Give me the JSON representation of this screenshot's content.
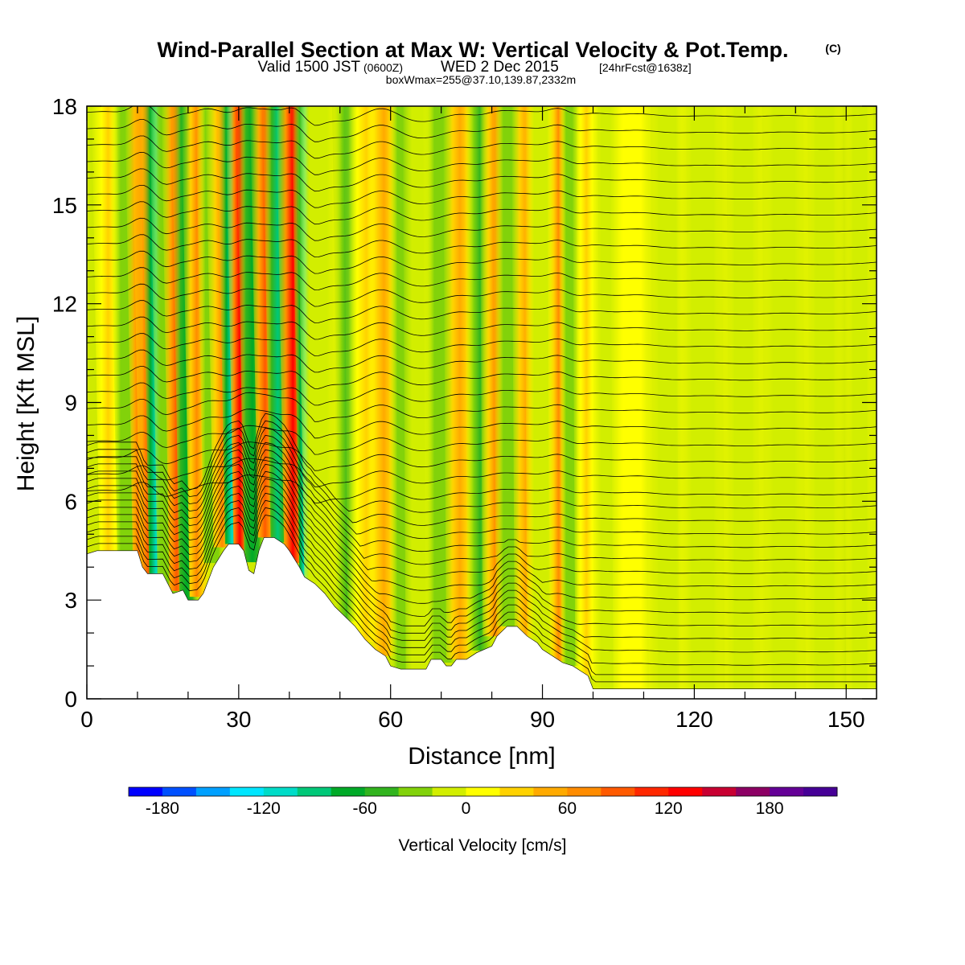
{
  "title": {
    "main": "Wind-Parallel Section at Max W: Vertical Velocity & Pot.Temp.",
    "copyright": "(C)",
    "valid_prefix": "Valid 1500 JST",
    "valid_utc": "(0600Z)",
    "valid_date": "WED 2 Dec 2015",
    "forecast": "[24hrFcst@1638z]",
    "boxwmax": "boxWmax=255@37.10,139.87,2332m"
  },
  "chart_data": {
    "type": "heatmap",
    "title": "Wind-Parallel Section at Max W: Vertical Velocity & Pot.Temp.",
    "xlabel": "Distance [nm]",
    "ylabel": "Height [Kft MSL]",
    "xlim": [
      0,
      156
    ],
    "ylim": [
      0,
      18
    ],
    "x_ticks": [
      0,
      30,
      60,
      90,
      120,
      150
    ],
    "x_tick_labels": [
      "0",
      "30",
      "60",
      "90",
      "120",
      "150"
    ],
    "y_ticks": [
      0,
      3,
      6,
      9,
      12,
      15,
      18
    ],
    "y_tick_labels": [
      "0",
      "3",
      "6",
      "9",
      "12",
      "15",
      "18"
    ],
    "colorbar": {
      "title": "Vertical Velocity [cm/s]",
      "min": -200,
      "max": 220,
      "step": 20,
      "tick_values": [
        -180,
        -120,
        -60,
        0,
        60,
        120,
        180
      ],
      "tick_labels": [
        "-180",
        "-120",
        "-60",
        "0",
        "60",
        "120",
        "180"
      ],
      "colors": [
        "#0000ff",
        "#0050ff",
        "#00a0ff",
        "#00e6ff",
        "#00dcc8",
        "#00c878",
        "#00aa28",
        "#32b41e",
        "#82d20a",
        "#d2ee00",
        "#ffff00",
        "#ffd200",
        "#ffaa00",
        "#ff8c00",
        "#ff5a00",
        "#ff2800",
        "#ff0000",
        "#c80032",
        "#8c0064",
        "#640096",
        "#460096"
      ]
    },
    "terrain_kft": [
      [
        0,
        4.4
      ],
      [
        2,
        4.5
      ],
      [
        10,
        4.5
      ],
      [
        11,
        4.0
      ],
      [
        12,
        3.8
      ],
      [
        15,
        3.8
      ],
      [
        16,
        3.5
      ],
      [
        17,
        3.2
      ],
      [
        19,
        3.3
      ],
      [
        20,
        3.0
      ],
      [
        22,
        3.0
      ],
      [
        23,
        3.2
      ],
      [
        25,
        4.0
      ],
      [
        27,
        4.5
      ],
      [
        28,
        4.7
      ],
      [
        30,
        4.7
      ],
      [
        31,
        4.5
      ],
      [
        32,
        3.9
      ],
      [
        33,
        3.8
      ],
      [
        34,
        4.5
      ],
      [
        35,
        4.9
      ],
      [
        37,
        4.9
      ],
      [
        39,
        4.7
      ],
      [
        40,
        4.5
      ],
      [
        42,
        4.0
      ],
      [
        43,
        3.7
      ],
      [
        45,
        3.5
      ],
      [
        47,
        3.2
      ],
      [
        49,
        2.8
      ],
      [
        51,
        2.5
      ],
      [
        53,
        2.2
      ],
      [
        55,
        1.8
      ],
      [
        57,
        1.5
      ],
      [
        59,
        1.3
      ],
      [
        60,
        1.0
      ],
      [
        62,
        0.9
      ],
      [
        67,
        0.9
      ],
      [
        68,
        1.2
      ],
      [
        70,
        1.2
      ],
      [
        71,
        1.0
      ],
      [
        72,
        1.0
      ],
      [
        73,
        1.2
      ],
      [
        75,
        1.2
      ],
      [
        77,
        1.4
      ],
      [
        80,
        1.6
      ],
      [
        81,
        1.9
      ],
      [
        83,
        2.2
      ],
      [
        85,
        2.2
      ],
      [
        87,
        1.9
      ],
      [
        89,
        1.7
      ],
      [
        90,
        1.5
      ],
      [
        92,
        1.3
      ],
      [
        94,
        1.1
      ],
      [
        96,
        1.0
      ],
      [
        97,
        0.9
      ],
      [
        99,
        0.7
      ],
      [
        100,
        0.3
      ],
      [
        156,
        0.3
      ]
    ],
    "vertical_velocity_bands": [
      {
        "x": 5,
        "w": 2.5,
        "value": 20
      },
      {
        "x": 9,
        "w": 3,
        "value": -40
      },
      {
        "x": 11.5,
        "w": 2.4,
        "value": 90
      },
      {
        "x": 13,
        "w": 2.5,
        "value": 80
      },
      {
        "x": 14.5,
        "w": 2.2,
        "value": -120
      },
      {
        "x": 17,
        "w": 3.0,
        "value": -40
      },
      {
        "x": 18.5,
        "w": 2.2,
        "value": 80
      },
      {
        "x": 20.5,
        "w": 2.2,
        "value": -80
      },
      {
        "x": 22.5,
        "w": 2.2,
        "value": 70
      },
      {
        "x": 25.5,
        "w": 2.4,
        "value": -40
      },
      {
        "x": 27.5,
        "w": 2.5,
        "value": 60
      },
      {
        "x": 29.5,
        "w": 2.2,
        "value": -120
      },
      {
        "x": 31,
        "w": 2.0,
        "value": 120
      },
      {
        "x": 33.5,
        "w": 2.4,
        "value": -80
      },
      {
        "x": 36,
        "w": 2.2,
        "value": 80
      },
      {
        "x": 38.5,
        "w": 2.2,
        "value": -100
      },
      {
        "x": 41.5,
        "w": 2.5,
        "value": 130
      },
      {
        "x": 44,
        "w": 2.0,
        "value": -130
      },
      {
        "x": 46.5,
        "w": 3.5,
        "value": -20
      },
      {
        "x": 52,
        "w": 3.0,
        "value": -60
      },
      {
        "x": 55.5,
        "w": 4.0,
        "value": 20
      },
      {
        "x": 59,
        "w": 3.0,
        "value": 40
      },
      {
        "x": 63,
        "w": 3.0,
        "value": -40
      },
      {
        "x": 66,
        "w": 3.0,
        "value": -20
      },
      {
        "x": 70.5,
        "w": 3.5,
        "value": -40
      },
      {
        "x": 74,
        "w": 3.0,
        "value": 40
      },
      {
        "x": 78,
        "w": 2.8,
        "value": -60
      },
      {
        "x": 81,
        "w": 2.8,
        "value": 70
      },
      {
        "x": 84,
        "w": 3.2,
        "value": -40
      },
      {
        "x": 87,
        "w": 2.5,
        "value": 40
      },
      {
        "x": 90,
        "w": 3.0,
        "value": -20
      },
      {
        "x": 93.5,
        "w": 2.0,
        "value": 60
      },
      {
        "x": 96,
        "w": 2.2,
        "value": -40
      },
      {
        "x": 99,
        "w": 2.5,
        "value": 20
      },
      {
        "x": 103.5,
        "w": 3.5,
        "value": -20
      },
      {
        "x": 108,
        "w": 4.0,
        "value": 10
      },
      {
        "x": 115,
        "w": 4.0,
        "value": -20
      },
      {
        "x": 122,
        "w": 5.0,
        "value": -10
      },
      {
        "x": 130,
        "w": 4.0,
        "value": -20
      },
      {
        "x": 138,
        "w": 5.0,
        "value": -10
      },
      {
        "x": 146,
        "w": 4.0,
        "value": -20
      },
      {
        "x": 153,
        "w": 3.0,
        "value": -10
      }
    ],
    "theta_contour_base_kft": [
      0.3,
      0.7,
      1.1,
      1.5,
      1.9,
      2.3,
      2.7,
      3.1,
      3.5,
      3.9,
      4.3,
      4.7,
      5.1,
      5.5,
      5.9,
      6.3,
      6.8,
      7.3,
      7.8,
      8.3,
      8.8,
      9.3,
      9.8,
      10.3,
      10.8,
      11.3,
      11.8,
      12.3,
      12.8,
      13.3,
      13.8,
      14.3,
      14.8,
      15.3,
      15.8,
      16.3,
      16.8,
      17.3,
      17.8
    ]
  }
}
